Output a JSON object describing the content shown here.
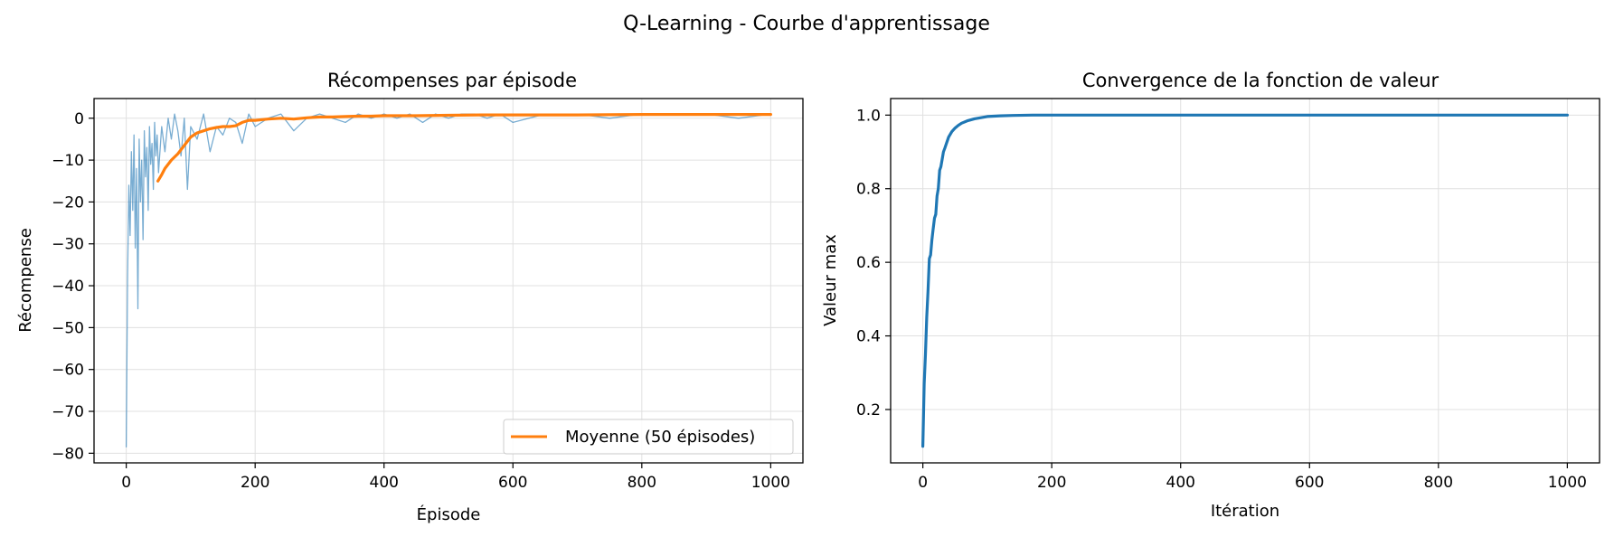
{
  "suptitle": "Q-Learning - Courbe d'apprentissage",
  "colors": {
    "raw": "#1f77b4",
    "mean": "#ff7f0e",
    "value": "#1f77b4",
    "grid": "#e0e0e0"
  },
  "chart_data": [
    {
      "type": "line",
      "title": "Récompenses par épisode",
      "xlabel": "Épisode",
      "ylabel": "Récompense",
      "xlim": [
        -50,
        1050
      ],
      "ylim": [
        -82.3,
        4.7
      ],
      "xticks": [
        0,
        200,
        400,
        600,
        800,
        1000
      ],
      "yticks": [
        0,
        -10,
        -20,
        -30,
        -40,
        -50,
        -60,
        -70,
        -80
      ],
      "grid": true,
      "legend_position": "lower-right",
      "series": [
        {
          "id": "raw",
          "style": "thin-transparent",
          "note_points": "approximate, sampled",
          "x": [
            0,
            2,
            4,
            6,
            8,
            10,
            12,
            14,
            16,
            18,
            20,
            22,
            24,
            26,
            28,
            30,
            32,
            34,
            36,
            38,
            40,
            42,
            44,
            46,
            48,
            50,
            55,
            60,
            65,
            70,
            75,
            80,
            85,
            90,
            95,
            100,
            110,
            120,
            130,
            140,
            150,
            160,
            170,
            180,
            190,
            200,
            220,
            240,
            260,
            280,
            300,
            320,
            340,
            360,
            380,
            400,
            420,
            440,
            460,
            480,
            500,
            520,
            540,
            560,
            580,
            600,
            650,
            700,
            750,
            800,
            850,
            900,
            950,
            1000
          ],
          "y": [
            -78.5,
            -38,
            -16,
            -28,
            -8,
            -22,
            -4,
            -31,
            -12,
            -45.5,
            -5,
            -20,
            -10,
            -29,
            -3,
            -14,
            -7,
            -22,
            -2,
            -11,
            -6,
            -17,
            -1,
            -9,
            -4,
            -13,
            -2,
            -8,
            0,
            -5,
            1,
            -3,
            -9,
            0,
            -17,
            -2,
            -5,
            1,
            -8,
            -2,
            -4,
            0,
            -1,
            -6,
            1,
            -2,
            0,
            1,
            -3,
            0,
            1,
            0,
            -1,
            1,
            0,
            1,
            0,
            1,
            -1,
            1,
            0,
            1,
            1,
            0,
            1,
            -1,
            1,
            1,
            0,
            1,
            1,
            1,
            0,
            1
          ]
        },
        {
          "id": "mean",
          "name": "Moyenne (50 épisodes)",
          "x": [
            49,
            55,
            60,
            70,
            80,
            90,
            100,
            110,
            120,
            130,
            140,
            150,
            160,
            170,
            180,
            190,
            200,
            220,
            240,
            260,
            280,
            300,
            320,
            340,
            360,
            380,
            400,
            450,
            500,
            550,
            600,
            700,
            800,
            900,
            1000
          ],
          "y": [
            -15,
            -13.5,
            -12,
            -10,
            -8.5,
            -6.5,
            -4.5,
            -3.5,
            -3,
            -2.5,
            -2.2,
            -2,
            -2,
            -1.8,
            -1,
            -0.5,
            -0.5,
            -0.2,
            0,
            -0.2,
            0.1,
            0.3,
            0.3,
            0.4,
            0.5,
            0.5,
            0.6,
            0.6,
            0.7,
            0.8,
            0.8,
            0.8,
            0.9,
            0.9,
            0.9
          ]
        }
      ]
    },
    {
      "type": "line",
      "title": "Convergence de la fonction de valeur",
      "xlabel": "Itération",
      "ylabel": "Valeur max",
      "xlim": [
        -50,
        1050
      ],
      "ylim": [
        0.055,
        1.045
      ],
      "xticks": [
        0,
        200,
        400,
        600,
        800,
        1000
      ],
      "yticks": [
        0.2,
        0.4,
        0.6,
        0.8,
        1.0
      ],
      "ytick_format": "fixed1",
      "grid": true,
      "series": [
        {
          "id": "value",
          "x": [
            0,
            2,
            4,
            6,
            8,
            10,
            12,
            14,
            16,
            18,
            20,
            22,
            24,
            26,
            28,
            30,
            32,
            34,
            36,
            38,
            40,
            45,
            50,
            55,
            60,
            70,
            80,
            90,
            100,
            120,
            140,
            170,
            200,
            400,
            600,
            800,
            1000
          ],
          "y": [
            0.1,
            0.27,
            0.35,
            0.45,
            0.52,
            0.61,
            0.62,
            0.66,
            0.69,
            0.72,
            0.73,
            0.78,
            0.8,
            0.85,
            0.86,
            0.88,
            0.9,
            0.91,
            0.92,
            0.93,
            0.94,
            0.955,
            0.965,
            0.972,
            0.978,
            0.985,
            0.99,
            0.993,
            0.996,
            0.998,
            0.999,
            1.0,
            1.0,
            1.0,
            1.0,
            1.0,
            1.0
          ]
        }
      ]
    }
  ]
}
